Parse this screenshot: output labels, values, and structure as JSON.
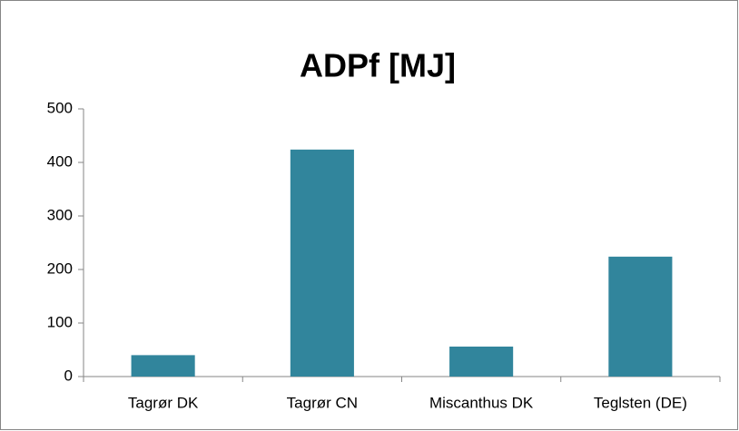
{
  "chart_data": {
    "type": "bar",
    "title": "ADPf [MJ]",
    "categories": [
      "Tagrør DK",
      "Tagrør CN",
      "Miscanthus DK",
      "Teglsten (DE)"
    ],
    "values": [
      40,
      424,
      56,
      224
    ],
    "color": "#31859c",
    "ylim": [
      0,
      500
    ],
    "yticks": [
      0,
      100,
      200,
      300,
      400,
      500
    ],
    "grid": false
  }
}
